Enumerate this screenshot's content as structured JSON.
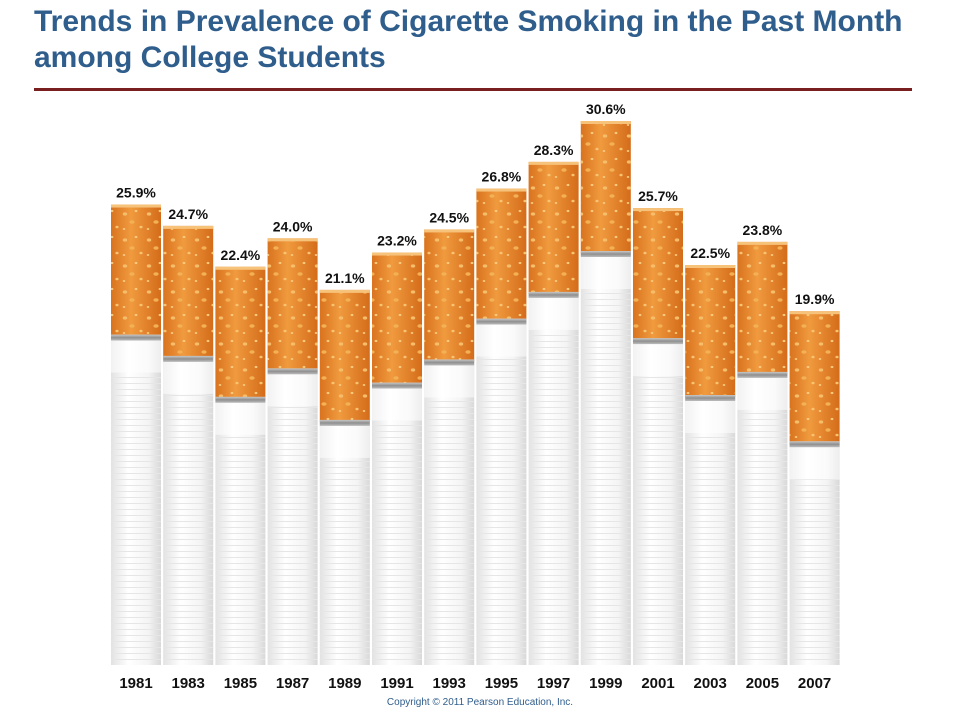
{
  "title": "Trends in Prevalence of Cigarette Smoking in the Past Month among College Students",
  "copyright": "Copyright © 2011 Pearson Education, Inc.",
  "colors": {
    "title": "#2f5d8c",
    "rule": "#7a1f1f",
    "filter": "#e8892e",
    "filter_speckle": "#f3b35c",
    "paper": "#f4f4f4",
    "band": "#9a9a9a"
  },
  "chart_data": {
    "type": "bar",
    "categories": [
      "1981",
      "1983",
      "1985",
      "1987",
      "1989",
      "1991",
      "1993",
      "1995",
      "1997",
      "1999",
      "2001",
      "2003",
      "2005",
      "2007"
    ],
    "values": [
      25.9,
      24.7,
      22.4,
      24.0,
      21.1,
      23.2,
      24.5,
      26.8,
      28.3,
      30.6,
      25.7,
      22.5,
      23.8,
      19.9
    ],
    "value_labels": [
      "25.9%",
      "24.7%",
      "22.4%",
      "24.0%",
      "21.1%",
      "23.2%",
      "24.5%",
      "26.8%",
      "28.3%",
      "30.6%",
      "25.7%",
      "22.5%",
      "23.8%",
      "19.9%"
    ],
    "title": "",
    "xlabel": "",
    "ylabel": "",
    "grid": false,
    "legend": "none"
  }
}
